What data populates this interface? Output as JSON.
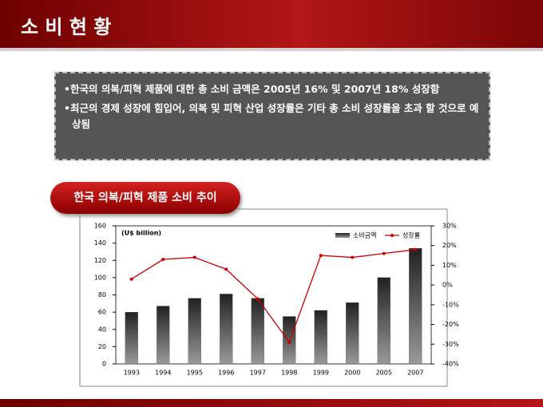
{
  "header": {
    "title": "소 비 현 황"
  },
  "bullets": [
    "한국의 의복/피혁 제품에 대한 총 소비 금액은 2005년 16% 및 2007년 18% 성장함",
    "최근의 경제 성장에 힘입어, 의복 및 피혁 산업 성장률은 기타 총 소비 성장률을 초과 할 것으로 예상됨"
  ],
  "chart_data": {
    "type": "bar-line",
    "title": "한국 의복/피혁 제품 소비 추이",
    "y_label": "(U$ billion)",
    "categories": [
      "1993",
      "1994",
      "1995",
      "1996",
      "1997",
      "1998",
      "1999",
      "2000",
      "2005",
      "2007"
    ],
    "series": [
      {
        "name": "소비금액",
        "type": "bar",
        "color": "#444444",
        "axis": "y",
        "values": [
          60,
          67,
          76,
          81,
          76,
          55,
          62,
          71,
          100,
          134
        ]
      },
      {
        "name": "성장률",
        "type": "line",
        "color": "#cc0000",
        "axis": "y2",
        "values": [
          3,
          13,
          14,
          8,
          -7,
          -29,
          15,
          14,
          16,
          18
        ]
      }
    ],
    "ylim": [
      0,
      160
    ],
    "yticks": [
      0,
      20,
      40,
      60,
      80,
      100,
      120,
      140,
      160
    ],
    "y2lim": [
      -40,
      30
    ],
    "y2ticks": [
      {
        "value": -40,
        "label": "-40%"
      },
      {
        "value": -30,
        "label": "-30%"
      },
      {
        "value": -20,
        "label": "-20%"
      },
      {
        "value": -10,
        "label": "-10%"
      },
      {
        "value": 0,
        "label": "0%"
      },
      {
        "value": 10,
        "label": "10%"
      },
      {
        "value": 20,
        "label": "20%"
      },
      {
        "value": 30,
        "label": "30%"
      }
    ],
    "legend": "top-right",
    "grid": false
  }
}
